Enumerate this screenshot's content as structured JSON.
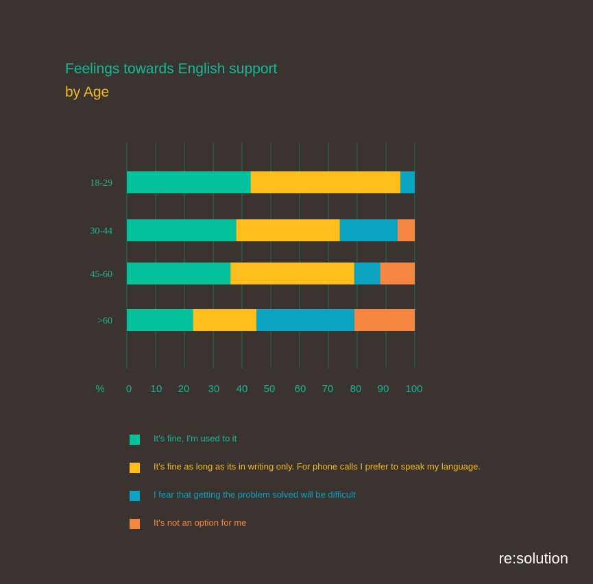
{
  "header": {
    "title": "Feelings towards English support",
    "subtitle": "by Age"
  },
  "colors": {
    "background": "#3a3330",
    "grid": "#2b5a4c",
    "series": [
      "#05c29c",
      "#fdbe1e",
      "#0aa4c2",
      "#f58642"
    ]
  },
  "chart_data": {
    "type": "bar",
    "orientation": "horizontal",
    "stacked": true,
    "categories": [
      "18-29",
      "30-44",
      "45-60",
      ">60"
    ],
    "series": [
      {
        "name": "It's fine, I'm used  to it",
        "values": [
          43,
          38,
          36,
          23
        ]
      },
      {
        "name": "It's fine as long as its in writing only. For phone calls I prefer to speak my language.",
        "values": [
          52,
          36,
          43,
          22
        ]
      },
      {
        "name": "I fear that getting the problem solved will be difficult",
        "values": [
          5,
          20,
          9,
          34
        ]
      },
      {
        "name": "It's not an option for me",
        "values": [
          0,
          6,
          12,
          21
        ]
      }
    ],
    "xlabel": "%",
    "xlim": [
      0,
      100
    ],
    "xticks": [
      "0",
      "10",
      "20",
      "30",
      "40",
      "50",
      "60",
      "70",
      "80",
      "90",
      "100"
    ],
    "grid": "vertical",
    "legend_position": "bottom"
  },
  "brand": {
    "name": "re:solution"
  }
}
